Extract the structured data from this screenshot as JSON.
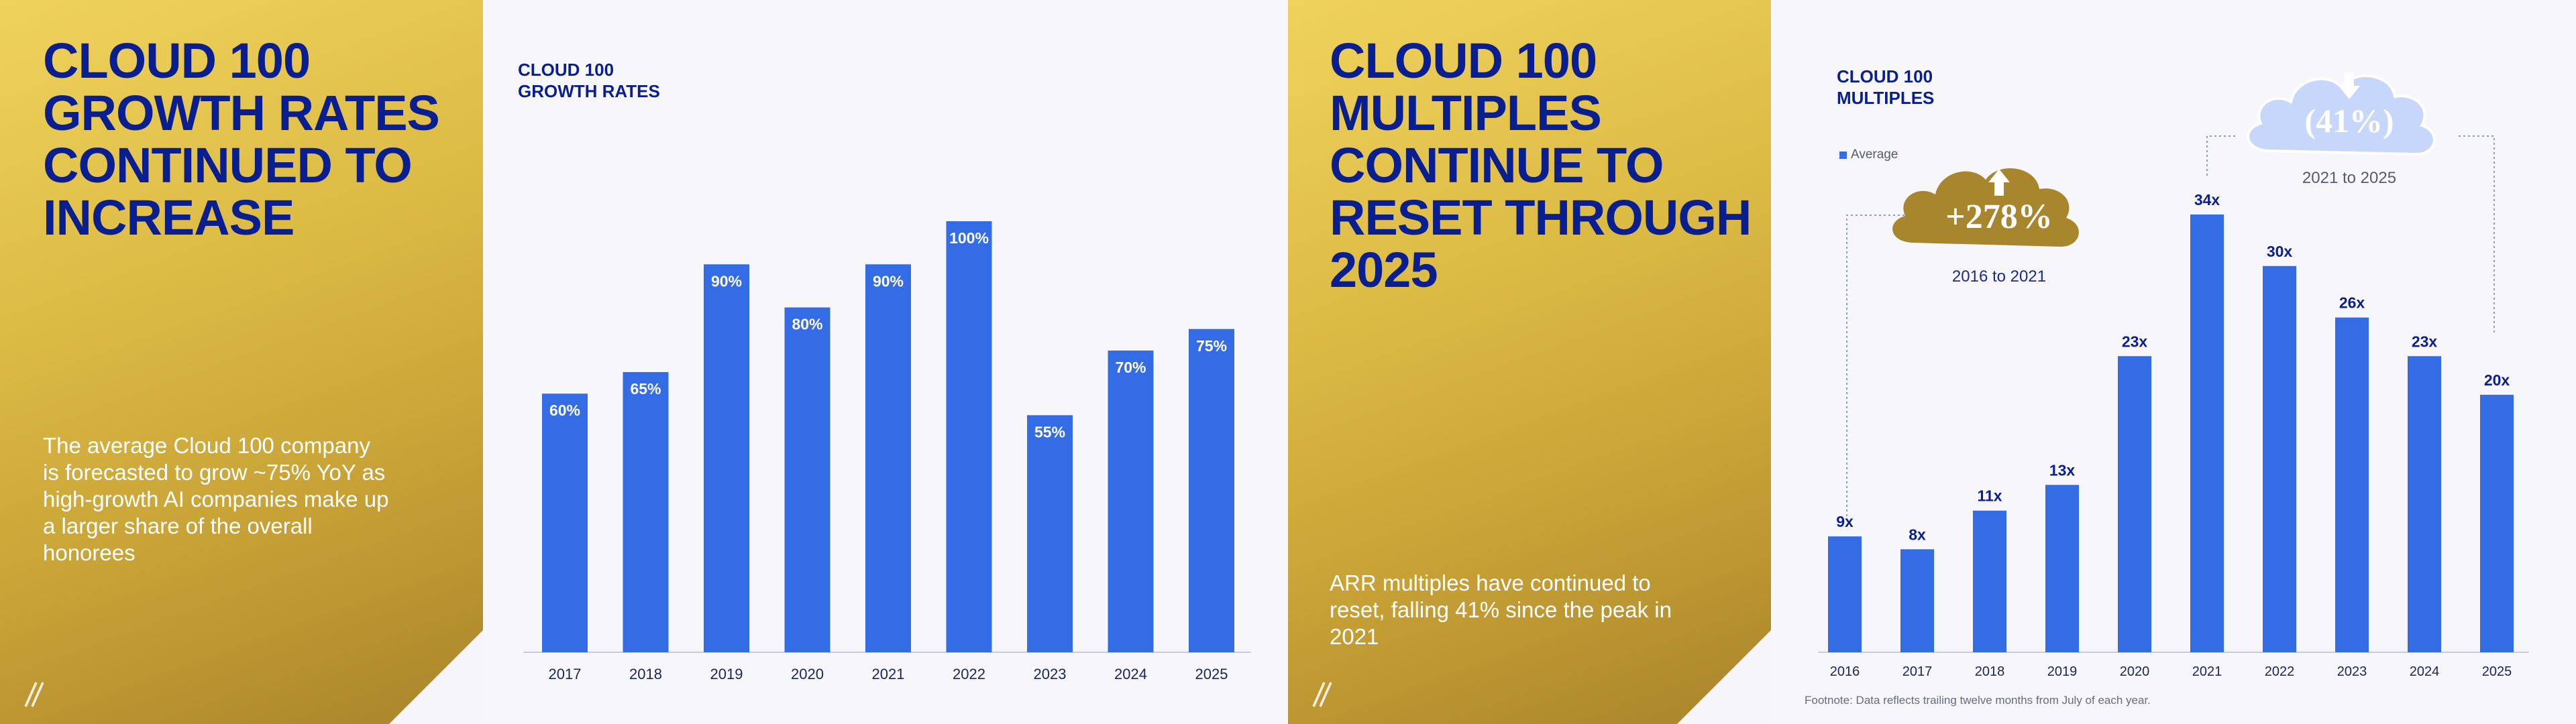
{
  "slide1": {
    "title_lines": [
      "CLOUD 100",
      "GROWTH RATES",
      "CONTINUED TO",
      "INCREASE"
    ],
    "body_lines": [
      "The average Cloud 100 company",
      "is forecasted to grow ~75% YoY as",
      "high-growth AI companies make up",
      "a larger share of the overall",
      "honorees"
    ]
  },
  "chart1_title_lines": [
    "CLOUD 100",
    "GROWTH RATES"
  ],
  "slide2": {
    "title_lines": [
      "CLOUD 100",
      "MULTIPLES",
      "CONTINUE TO",
      "RESET THROUGH",
      "2025"
    ],
    "body_lines": [
      "ARR multiples have continued to",
      "reset, falling 41% since the peak in",
      "2021"
    ]
  },
  "chart2_title_lines": [
    "CLOUD 100",
    "MULTIPLES"
  ],
  "legend_label": "Average",
  "callout_up": {
    "value": "+278%",
    "caption": "2016 to 2021"
  },
  "callout_down": {
    "value": "(41%)",
    "caption": "2021 to 2025"
  },
  "footnote": "Footnote: Data reflects trailing twelve months from July of each year.",
  "colors": {
    "bar": "#346ce5",
    "title": "#0a1f8f",
    "gold": "#d6b43f",
    "cloud_gold": "#a8862e",
    "cloud_blue": "#c7d7fb"
  },
  "chart_data": [
    {
      "type": "bar",
      "title": "CLOUD 100 GROWTH RATES",
      "categories": [
        "2017",
        "2018",
        "2019",
        "2020",
        "2021",
        "2022",
        "2023",
        "2024",
        "2025"
      ],
      "values": [
        60,
        65,
        90,
        80,
        90,
        100,
        55,
        70,
        75
      ],
      "data_labels": [
        "60%",
        "65%",
        "90%",
        "80%",
        "90%",
        "100%",
        "55%",
        "70%",
        "75%"
      ],
      "ylim": [
        0,
        100
      ],
      "grid": false
    },
    {
      "type": "bar",
      "title": "CLOUD 100 MULTIPLES",
      "categories": [
        "2016",
        "2017",
        "2018",
        "2019",
        "2020",
        "2021",
        "2022",
        "2023",
        "2024",
        "2025"
      ],
      "series": [
        {
          "name": "Average",
          "values": [
            9,
            8,
            11,
            13,
            23,
            34,
            30,
            26,
            23,
            20
          ]
        }
      ],
      "data_labels": [
        "9x",
        "8x",
        "11x",
        "13x",
        "23x",
        "34x",
        "30x",
        "26x",
        "23x",
        "20x"
      ],
      "ylim": [
        0,
        34
      ],
      "grid": false,
      "legend": "top-left"
    }
  ]
}
